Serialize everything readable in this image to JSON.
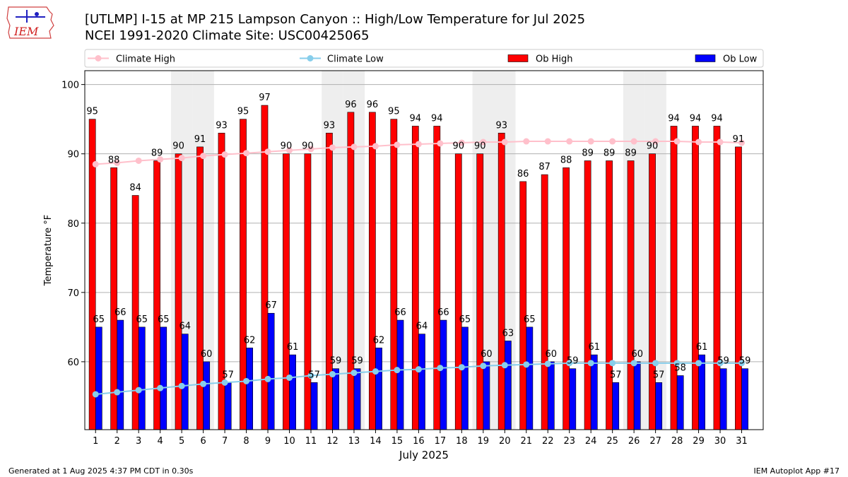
{
  "header": {
    "logo_text": "IEM",
    "title_line1": "[UTLMP] I-15 at MP 215 Lampson Canyon  :: High/Low Temperature for Jul 2025",
    "title_line2": "NCEI 1991-2020 Climate Site: USC00425065"
  },
  "footer": {
    "generated": "Generated at 1 Aug 2025 4:37 PM CDT in 0.30s",
    "app": "IEM Autoplot App #17"
  },
  "chart_data": {
    "type": "bar",
    "xlabel": "July 2025",
    "ylabel": "Temperature °F",
    "ylim": [
      50.2,
      102
    ],
    "yticks": [
      60,
      70,
      80,
      90,
      100
    ],
    "grid": "horizontal",
    "legend_position": "top",
    "weekend_shading_days": [
      5,
      6,
      12,
      13,
      19,
      20,
      26,
      27
    ],
    "categories": [
      "1",
      "2",
      "3",
      "4",
      "5",
      "6",
      "7",
      "8",
      "9",
      "10",
      "11",
      "12",
      "13",
      "14",
      "15",
      "16",
      "17",
      "18",
      "19",
      "20",
      "21",
      "22",
      "23",
      "24",
      "25",
      "26",
      "27",
      "28",
      "29",
      "30",
      "31"
    ],
    "series": [
      {
        "name": "Ob High",
        "kind": "bar",
        "color": "#ff0000",
        "values": [
          95,
          88,
          84,
          89,
          90,
          91,
          93,
          95,
          97,
          90,
          90,
          93,
          96,
          96,
          95,
          94,
          94,
          90,
          90,
          93,
          86,
          87,
          88,
          89,
          89,
          89,
          90,
          94,
          94,
          94,
          91
        ],
        "labels": [
          "95",
          "88",
          "84",
          "89",
          "90",
          "91",
          "93",
          "95",
          "97",
          "90",
          "90",
          "93",
          "96",
          "96",
          "95",
          "94",
          "94",
          "90",
          "90",
          "93",
          "86",
          "87",
          "88",
          "89",
          "89",
          "89",
          "90",
          "94",
          "94",
          "94",
          "91"
        ]
      },
      {
        "name": "Ob Low",
        "kind": "bar",
        "color": "#0000ff",
        "values": [
          65,
          66,
          65,
          65,
          64,
          60,
          57,
          62,
          67,
          61,
          57,
          59,
          59,
          62,
          66,
          64,
          66,
          65,
          60,
          63,
          65,
          60,
          59,
          61,
          57,
          60,
          57,
          58,
          61,
          59,
          59
        ],
        "labels": [
          "65",
          "66",
          "65",
          "65",
          "64",
          "60",
          "57",
          "62",
          "67",
          "61",
          "57",
          "59",
          "59",
          "62",
          "66",
          "64",
          "66",
          "65",
          "60",
          "63",
          "65",
          "60",
          "59",
          "61",
          "57",
          "60",
          "57",
          "58",
          "61",
          "59",
          "59"
        ]
      },
      {
        "name": "Climate High",
        "kind": "line",
        "color": "#ffc0cb",
        "values": [
          88.5,
          88.7,
          89.0,
          89.2,
          89.4,
          89.7,
          89.9,
          90.1,
          90.3,
          90.5,
          90.7,
          90.9,
          91.0,
          91.1,
          91.3,
          91.4,
          91.5,
          91.6,
          91.7,
          91.7,
          91.8,
          91.8,
          91.8,
          91.8,
          91.8,
          91.8,
          91.8,
          91.8,
          91.7,
          91.7,
          91.6
        ]
      },
      {
        "name": "Climate Low",
        "kind": "line",
        "color": "#87ceeb",
        "values": [
          55.3,
          55.6,
          55.9,
          56.2,
          56.5,
          56.8,
          57.0,
          57.2,
          57.5,
          57.7,
          58.0,
          58.2,
          58.4,
          58.6,
          58.8,
          58.9,
          59.1,
          59.2,
          59.4,
          59.5,
          59.6,
          59.7,
          59.8,
          59.8,
          59.8,
          59.8,
          59.8,
          59.8,
          59.8,
          59.8,
          59.8
        ]
      }
    ]
  }
}
